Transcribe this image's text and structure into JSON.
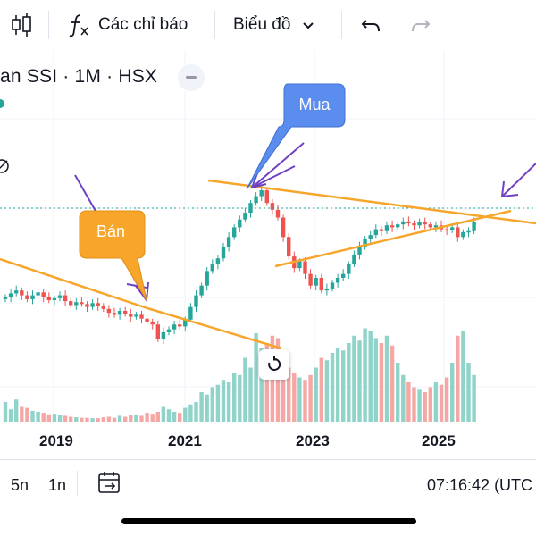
{
  "toolbar": {
    "indicators_label": "Các chỉ báo",
    "chart_type_label": "Biểu đồ"
  },
  "symbol": {
    "title": "an SSI · 1M · HSX"
  },
  "annotations": {
    "buy_label": "Mua",
    "sell_label": "Bán"
  },
  "colors": {
    "up": "#26a69a",
    "down": "#ef5350",
    "trendline": "#f7a52b",
    "arrow": "#6f42c1",
    "buy_callout": "#5b8def",
    "sell_callout": "#f7a52b"
  },
  "chart_data": {
    "type": "candlestick",
    "symbol": "SSI",
    "interval": "1M",
    "exchange": "HSX",
    "x_tick_labels": [
      "2019",
      "2021",
      "2023",
      "2025"
    ],
    "series": [
      {
        "name": "price",
        "values": [
          88,
          92,
          95,
          90,
          86,
          90,
          93,
          88,
          85,
          87,
          90,
          84,
          80,
          83,
          81,
          78,
          82,
          79,
          76,
          72,
          70,
          74,
          71,
          68,
          70,
          66,
          63,
          60,
          45,
          52,
          55,
          60,
          58,
          65,
          78,
          90,
          100,
          115,
          122,
          128,
          140,
          150,
          160,
          168,
          175,
          185,
          192,
          198,
          185,
          178,
          170,
          150,
          130,
          118,
          125,
          112,
          100,
          108,
          95,
          97,
          103,
          108,
          112,
          122,
          132,
          140,
          148,
          152,
          158,
          156,
          162,
          160,
          163,
          166,
          164,
          162,
          165,
          163,
          160,
          162,
          158,
          157,
          160,
          150,
          155,
          156,
          165
        ]
      }
    ],
    "volume": [
      40,
      25,
      45,
      30,
      28,
      22,
      20,
      18,
      15,
      16,
      14,
      12,
      10,
      9,
      8,
      8,
      7,
      7,
      9,
      10,
      8,
      12,
      10,
      14,
      15,
      12,
      18,
      16,
      20,
      30,
      25,
      20,
      18,
      28,
      35,
      40,
      60,
      55,
      70,
      75,
      85,
      80,
      100,
      95,
      130,
      110,
      180,
      150,
      160,
      175,
      170,
      120,
      110,
      100,
      90,
      85,
      95,
      110,
      130,
      125,
      140,
      150,
      145,
      160,
      175,
      165,
      190,
      185,
      170,
      160,
      175,
      155,
      120,
      95,
      80,
      70,
      65,
      60,
      70,
      80,
      75,
      90,
      120,
      175,
      185,
      120,
      95
    ]
  }
}
